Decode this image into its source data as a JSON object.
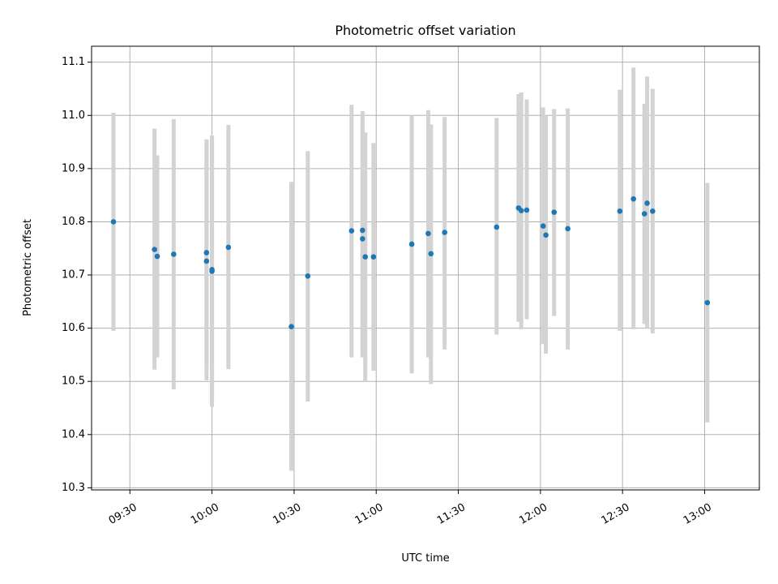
{
  "chart_data": {
    "type": "scatter",
    "title": "Photometric offset variation",
    "xlabel": "UTC time",
    "ylabel": "Photometric offset",
    "xlim": [
      "09:16",
      "13:20"
    ],
    "ylim": [
      10.296,
      11.13
    ],
    "grid": true,
    "legend": "none",
    "xticks": [
      "09:30",
      "10:00",
      "10:30",
      "11:00",
      "11:30",
      "12:00",
      "12:30",
      "13:00"
    ],
    "yticks": [
      10.3,
      10.4,
      10.5,
      10.6,
      10.7,
      10.8,
      10.9,
      11.0,
      11.1
    ],
    "ytick_labels": [
      "10.3",
      "10.4",
      "10.5",
      "10.6",
      "10.7",
      "10.8",
      "10.9",
      "11.0",
      "11.1"
    ],
    "colors": {
      "point": "#1f77b4",
      "errorbar": "#d3d3d3",
      "grid": "#b0b0b0"
    },
    "points": [
      {
        "t": "09:24",
        "y": 10.8,
        "lo": 10.595,
        "hi": 11.005
      },
      {
        "t": "09:39",
        "y": 10.748,
        "lo": 10.522,
        "hi": 10.975
      },
      {
        "t": "09:40",
        "y": 10.735,
        "lo": 10.545,
        "hi": 10.925
      },
      {
        "t": "09:46",
        "y": 10.739,
        "lo": 10.485,
        "hi": 10.993
      },
      {
        "t": "09:58",
        "y": 10.726,
        "lo": 10.502,
        "hi": 10.95
      },
      {
        "t": "09:58",
        "y": 10.742,
        "lo": 10.53,
        "hi": 10.955
      },
      {
        "t": "10:00",
        "y": 10.707,
        "lo": 10.452,
        "hi": 10.962
      },
      {
        "t": "10:00",
        "y": 10.71,
        "lo": 10.468,
        "hi": 10.952
      },
      {
        "t": "10:06",
        "y": 10.752,
        "lo": 10.523,
        "hi": 10.982
      },
      {
        "t": "10:29",
        "y": 10.603,
        "lo": 10.332,
        "hi": 10.875
      },
      {
        "t": "10:35",
        "y": 10.698,
        "lo": 10.462,
        "hi": 10.933
      },
      {
        "t": "10:51",
        "y": 10.783,
        "lo": 10.545,
        "hi": 11.02
      },
      {
        "t": "10:55",
        "y": 10.784,
        "lo": 10.56,
        "hi": 11.008
      },
      {
        "t": "10:55",
        "y": 10.768,
        "lo": 10.545,
        "hi": 10.99
      },
      {
        "t": "10:56",
        "y": 10.734,
        "lo": 10.5,
        "hi": 10.968
      },
      {
        "t": "10:59",
        "y": 10.734,
        "lo": 10.52,
        "hi": 10.948
      },
      {
        "t": "11:13",
        "y": 10.758,
        "lo": 10.515,
        "hi": 11.0
      },
      {
        "t": "11:19",
        "y": 10.778,
        "lo": 10.545,
        "hi": 11.01
      },
      {
        "t": "11:20",
        "y": 10.74,
        "lo": 10.495,
        "hi": 10.983
      },
      {
        "t": "11:25",
        "y": 10.78,
        "lo": 10.56,
        "hi": 10.997
      },
      {
        "t": "11:44",
        "y": 10.79,
        "lo": 10.588,
        "hi": 10.995
      },
      {
        "t": "11:52",
        "y": 10.826,
        "lo": 10.612,
        "hi": 11.04
      },
      {
        "t": "11:53",
        "y": 10.821,
        "lo": 10.598,
        "hi": 11.043
      },
      {
        "t": "11:55",
        "y": 10.822,
        "lo": 10.617,
        "hi": 11.03
      },
      {
        "t": "12:01",
        "y": 10.792,
        "lo": 10.57,
        "hi": 11.015
      },
      {
        "t": "12:02",
        "y": 10.775,
        "lo": 10.552,
        "hi": 11.0
      },
      {
        "t": "12:05",
        "y": 10.818,
        "lo": 10.623,
        "hi": 11.012
      },
      {
        "t": "12:10",
        "y": 10.787,
        "lo": 10.56,
        "hi": 11.013
      },
      {
        "t": "12:29",
        "y": 10.82,
        "lo": 10.595,
        "hi": 11.048
      },
      {
        "t": "12:34",
        "y": 10.843,
        "lo": 10.598,
        "hi": 11.09
      },
      {
        "t": "12:38",
        "y": 10.815,
        "lo": 10.608,
        "hi": 11.022
      },
      {
        "t": "12:39",
        "y": 10.835,
        "lo": 10.6,
        "hi": 11.073
      },
      {
        "t": "12:41",
        "y": 10.82,
        "lo": 10.59,
        "hi": 11.05
      },
      {
        "t": "13:01",
        "y": 10.648,
        "lo": 10.423,
        "hi": 10.873
      }
    ]
  }
}
